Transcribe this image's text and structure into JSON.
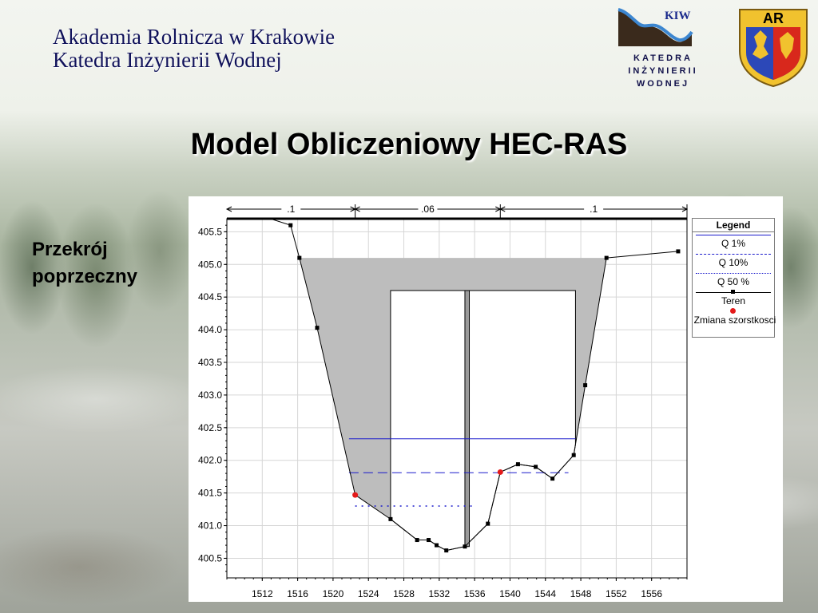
{
  "header": {
    "institution_line1": "Akademia Rolnicza w Krakowie",
    "institution_line2": "Katedra Inżynierii Wodnej"
  },
  "logos": {
    "kiw_text": "KIW",
    "kiw_line1": "KATEDRA",
    "kiw_line2": "INŻYNIERII",
    "kiw_line3": "WODNEJ",
    "ar_text": "AR"
  },
  "title": "Model Obliczeniowy HEC-RAS",
  "side_label": {
    "line1": "Przekrój",
    "line2": "poprzeczny"
  },
  "colors": {
    "title_text": "#000000",
    "institution_text": "#10125a",
    "water_line": "#1a1acc",
    "terrain": "#000000",
    "roughness_change": "#e41a1a",
    "bridge_fill": "#bdbdbd"
  },
  "chart_data": {
    "type": "line",
    "xlabel": "",
    "ylabel": "",
    "xlim": [
      1508,
      1560
    ],
    "ylim": [
      400.2,
      405.7
    ],
    "grid": true,
    "xticks": [
      1512,
      1516,
      1520,
      1524,
      1528,
      1532,
      1536,
      1540,
      1544,
      1548,
      1552,
      1556
    ],
    "yticks": [
      400.5,
      401.0,
      401.5,
      402.0,
      402.5,
      403.0,
      403.5,
      404.0,
      404.5,
      405.0,
      405.5
    ],
    "manning_n": [
      {
        "label": ".1",
        "from": 1508,
        "to": 1522.5
      },
      {
        "label": ".06",
        "from": 1522.5,
        "to": 1538.9
      },
      {
        "label": ".1",
        "from": 1538.9,
        "to": 1560
      }
    ],
    "series": [
      {
        "name": "Teren",
        "x": [
          1506,
          1515.2,
          1516.2,
          1518.2,
          1522.5,
          1526.5,
          1529.5,
          1530.8,
          1531.7,
          1532.8,
          1534.9,
          1537.5,
          1538.9,
          1540.9,
          1542.9,
          1544.8,
          1547.2,
          1548.5,
          1550.9,
          1559
        ],
        "y": [
          406.0,
          405.6,
          405.1,
          404.03,
          401.47,
          401.1,
          400.78,
          400.78,
          400.7,
          400.62,
          400.68,
          401.03,
          401.82,
          401.94,
          401.9,
          401.72,
          402.08,
          403.15,
          405.1,
          405.2
        ]
      },
      {
        "name": "Q 1%",
        "x": [
          1521.8,
          1547.4
        ],
        "y": [
          402.33,
          402.33
        ]
      },
      {
        "name": "Q 10%",
        "x": [
          1521.8,
          1546.6
        ],
        "y": [
          401.81,
          401.81
        ]
      },
      {
        "name": "Q 50 %",
        "x": [
          1522.5,
          1536.0
        ],
        "y": [
          401.3,
          401.3
        ]
      }
    ],
    "roughness_change": {
      "name": "Zmiana szorstkosci",
      "x": [
        1522.5,
        1538.9
      ],
      "y": [
        401.47,
        401.82
      ]
    },
    "bridge": {
      "deck_elevation": 405.1,
      "left_opening_x": 1526.5,
      "right_opening_x": 1547.4,
      "low_chord": 404.6,
      "pier_x": [
        1534.9,
        1535.4
      ]
    },
    "legend": {
      "title": "Legend",
      "entries": [
        "Q 1%",
        "Q 10%",
        "Q 50 %",
        "Teren",
        "Zmiana szorstkosci"
      ],
      "placement": "right"
    }
  }
}
